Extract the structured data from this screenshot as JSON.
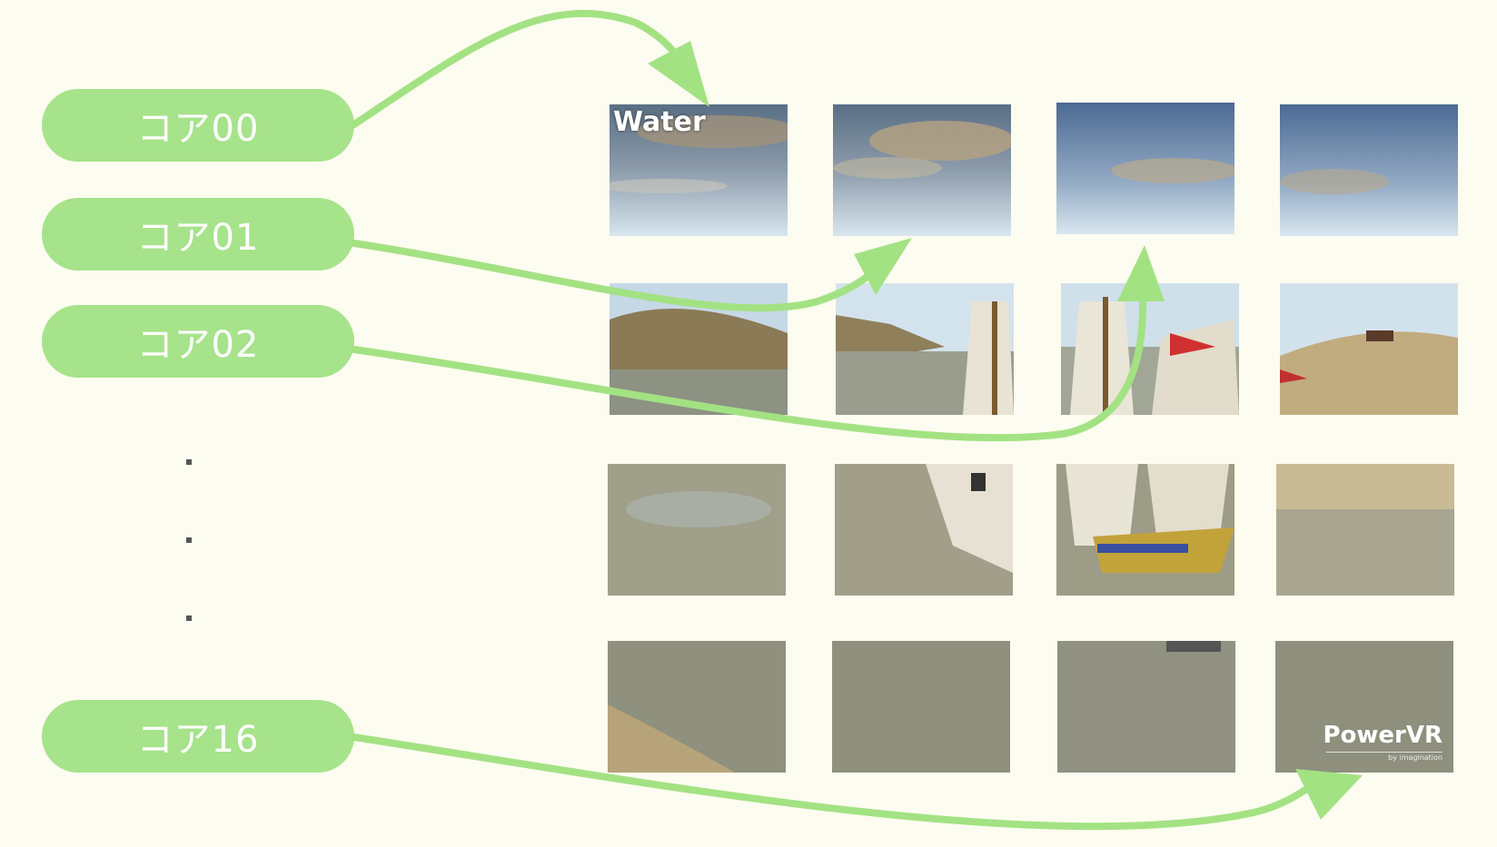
{
  "cores": [
    {
      "label": "コア00"
    },
    {
      "label": "コア01"
    },
    {
      "label": "コア02"
    },
    {
      "label": "コア16"
    }
  ],
  "tiles": {
    "water_label": "Water",
    "logo_label": "PowerVR",
    "logo_sub": "by imagination"
  },
  "colors": {
    "pill": "#a6e38a",
    "arrow": "#a3e283",
    "background": "#fdfcf0"
  }
}
